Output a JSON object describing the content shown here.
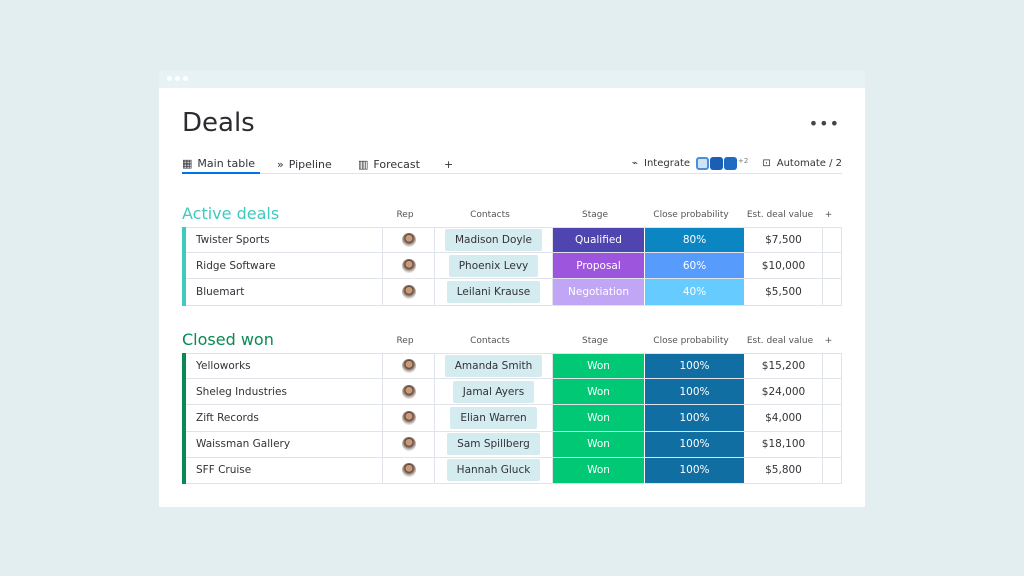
{
  "title": "Deals",
  "tabs": [
    {
      "label": "Main table",
      "icon": "table-icon"
    },
    {
      "label": "Pipeline",
      "icon": "chevrons-icon"
    },
    {
      "label": "Forecast",
      "icon": "chart-icon"
    }
  ],
  "add_tab": "+",
  "integrate": "Integrate",
  "integrations_more": "+2",
  "automate": "Automate / 2",
  "columns": {
    "rep": "Rep",
    "contacts": "Contacts",
    "stage": "Stage",
    "prob": "Close probability",
    "value": "Est. deal value",
    "add": "+"
  },
  "groups": [
    {
      "title": "Active deals",
      "color": "#3fc9bf",
      "rows": [
        {
          "name": "Twister Sports",
          "contact": "Madison Doyle",
          "stage": "Qualified",
          "stage_color": "#4e45b0",
          "prob": "80%",
          "prob_color": "#0b86c2",
          "value": "$7,500"
        },
        {
          "name": "Ridge Software",
          "contact": "Phoenix Levy",
          "stage": "Proposal",
          "stage_color": "#9d55dd",
          "prob": "60%",
          "prob_color": "#579bfc",
          "value": "$10,000"
        },
        {
          "name": "Bluemart",
          "contact": "Leilani Krause",
          "stage": "Negotiation",
          "stage_color": "#c2a6f6",
          "prob": "40%",
          "prob_color": "#66ccff",
          "value": "$5,500"
        }
      ]
    },
    {
      "title": "Closed won",
      "color": "#0a8a53",
      "rows": [
        {
          "name": "Yelloworks",
          "contact": "Amanda Smith",
          "stage": "Won",
          "stage_color": "#00c875",
          "prob": "100%",
          "prob_color": "#106ea3",
          "value": "$15,200"
        },
        {
          "name": "Sheleg Industries",
          "contact": "Jamal Ayers",
          "stage": "Won",
          "stage_color": "#00c875",
          "prob": "100%",
          "prob_color": "#106ea3",
          "value": "$24,000"
        },
        {
          "name": "Zift Records",
          "contact": "Elian Warren",
          "stage": "Won",
          "stage_color": "#00c875",
          "prob": "100%",
          "prob_color": "#106ea3",
          "value": "$4,000"
        },
        {
          "name": "Waissman Gallery",
          "contact": "Sam Spillberg",
          "stage": "Won",
          "stage_color": "#00c875",
          "prob": "100%",
          "prob_color": "#106ea3",
          "value": "$18,100"
        },
        {
          "name": "SFF Cruise",
          "contact": "Hannah Gluck",
          "stage": "Won",
          "stage_color": "#00c875",
          "prob": "100%",
          "prob_color": "#106ea3",
          "value": "$5,800"
        }
      ]
    }
  ]
}
